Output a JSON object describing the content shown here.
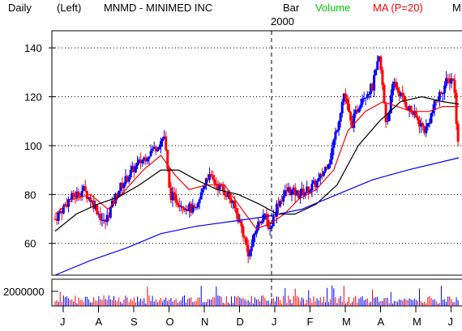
{
  "header": {
    "period": "Daily",
    "scale_side": "(Left)",
    "symbol_name": "MNMD - MINIMED INC",
    "bar_label": "Bar",
    "volume_label": "Volume",
    "ma_label": "MA (P=20)",
    "ma_truncated": "M",
    "year_marker": "2000"
  },
  "colors": {
    "up_candle": "#0000ff",
    "down_candle": "#ff0000",
    "volume": "#00cc00",
    "ma_short": "#ff0000",
    "ma_long": "#0000ff",
    "ma_mid": "#000000",
    "grid": "#000000"
  },
  "chart_data": {
    "type": "line",
    "price_panel": {
      "ylim": [
        47,
        147
      ],
      "yticks": [
        60,
        80,
        100,
        120,
        140
      ],
      "ytick_labels": [
        "60",
        "80",
        "100",
        "120",
        "140"
      ]
    },
    "volume_panel": {
      "ylim": [
        0,
        3000000
      ],
      "ytick_label": "2000000",
      "ytick_value": 2000000
    },
    "months": [
      "J",
      "A",
      "S",
      "O",
      "N",
      "D",
      "J",
      "F",
      "M",
      "A",
      "M",
      "J"
    ],
    "x_start": "1999-07-01",
    "year_break_month_index": 6,
    "series": [
      {
        "name": "Close",
        "points_by_month": [
          [
            0,
            70
          ],
          [
            0.4,
            78
          ],
          [
            0.8,
            82
          ],
          [
            1.1,
            76
          ],
          [
            1.4,
            68
          ],
          [
            1.8,
            82
          ],
          [
            2.2,
            90
          ],
          [
            2.6,
            96
          ],
          [
            2.9,
            100
          ],
          [
            3.1,
            104
          ],
          [
            3.25,
            80
          ],
          [
            3.6,
            76
          ],
          [
            4.0,
            73
          ],
          [
            4.3,
            88
          ],
          [
            4.6,
            84
          ],
          [
            4.9,
            80
          ],
          [
            5.1,
            74
          ],
          [
            5.3,
            66
          ],
          [
            5.5,
            55
          ],
          [
            5.7,
            66
          ],
          [
            5.9,
            72
          ],
          [
            6.1,
            66
          ],
          [
            6.3,
            76
          ],
          [
            6.6,
            82
          ],
          [
            6.9,
            80
          ],
          [
            7.2,
            82
          ],
          [
            7.5,
            86
          ],
          [
            7.8,
            95
          ],
          [
            8.0,
            108
          ],
          [
            8.2,
            122
          ],
          [
            8.4,
            108
          ],
          [
            8.7,
            120
          ],
          [
            9.0,
            124
          ],
          [
            9.2,
            136
          ],
          [
            9.4,
            108
          ],
          [
            9.6,
            126
          ],
          [
            9.9,
            118
          ],
          [
            10.2,
            112
          ],
          [
            10.5,
            106
          ],
          [
            10.8,
            118
          ],
          [
            11.1,
            126
          ],
          [
            11.3,
            128
          ],
          [
            11.45,
            96
          ]
        ]
      },
      {
        "name": "MA short",
        "points_by_month": [
          [
            0,
            72
          ],
          [
            0.5,
            78
          ],
          [
            1.0,
            80
          ],
          [
            1.5,
            74
          ],
          [
            2.0,
            82
          ],
          [
            2.5,
            90
          ],
          [
            3.0,
            96
          ],
          [
            3.4,
            88
          ],
          [
            3.8,
            82
          ],
          [
            4.3,
            84
          ],
          [
            4.8,
            84
          ],
          [
            5.3,
            74
          ],
          [
            5.7,
            66
          ],
          [
            6.1,
            68
          ],
          [
            6.5,
            72
          ],
          [
            6.9,
            78
          ],
          [
            7.4,
            82
          ],
          [
            7.9,
            90
          ],
          [
            8.3,
            106
          ],
          [
            8.8,
            114
          ],
          [
            9.3,
            118
          ],
          [
            9.7,
            116
          ],
          [
            10.1,
            114
          ],
          [
            10.6,
            114
          ],
          [
            11.0,
            116
          ],
          [
            11.45,
            116
          ]
        ]
      },
      {
        "name": "MA mid",
        "points_by_month": [
          [
            0,
            65
          ],
          [
            0.6,
            72
          ],
          [
            1.2,
            76
          ],
          [
            1.8,
            79
          ],
          [
            2.4,
            84
          ],
          [
            3.0,
            90
          ],
          [
            3.5,
            90
          ],
          [
            4.0,
            86
          ],
          [
            4.6,
            82
          ],
          [
            5.2,
            80
          ],
          [
            5.8,
            76
          ],
          [
            6.3,
            72
          ],
          [
            6.8,
            72
          ],
          [
            7.4,
            76
          ],
          [
            8.0,
            84
          ],
          [
            8.6,
            100
          ],
          [
            9.2,
            110
          ],
          [
            9.8,
            118
          ],
          [
            10.4,
            120
          ],
          [
            11.0,
            118
          ],
          [
            11.45,
            117
          ]
        ]
      },
      {
        "name": "MA long",
        "points_by_month": [
          [
            0,
            47
          ],
          [
            1.0,
            53
          ],
          [
            2.0,
            58
          ],
          [
            3.0,
            64
          ],
          [
            4.0,
            67
          ],
          [
            5.0,
            69
          ],
          [
            6.0,
            71
          ],
          [
            7.0,
            74
          ],
          [
            8.0,
            80
          ],
          [
            9.0,
            86
          ],
          [
            10.0,
            90
          ],
          [
            11.45,
            95
          ]
        ]
      }
    ]
  }
}
